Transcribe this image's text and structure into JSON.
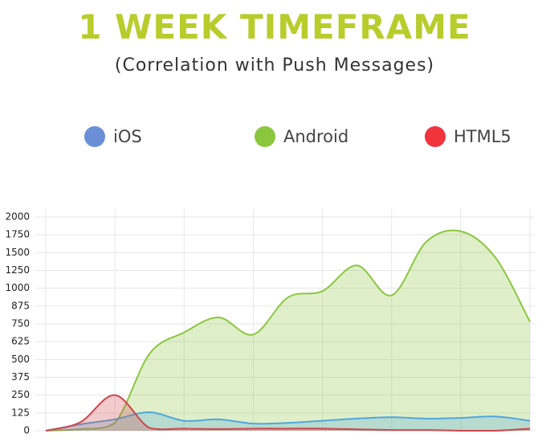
{
  "chart_data": {
    "type": "area",
    "title": "1 WEEK TIMEFRAME",
    "subtitle": "(Correlation with Push Messages)",
    "categories": [
      null,
      null,
      null,
      null,
      null,
      null,
      null,
      null,
      null,
      null,
      null,
      null,
      null,
      null,
      null
    ],
    "series": [
      {
        "name": "Android",
        "color": "#8cc63f",
        "legend_color": "#8cc63f",
        "values": [
          0,
          11,
          56,
          540,
          690,
          795,
          675,
          935,
          980,
          1320,
          950,
          1650,
          1800,
          1430,
          765
        ]
      },
      {
        "name": "iOS",
        "color": "#4fa8dc",
        "legend_color": "#6a8fd6",
        "values": [
          0,
          45,
          80,
          130,
          70,
          80,
          50,
          55,
          70,
          85,
          95,
          85,
          90,
          100,
          70
        ]
      },
      {
        "name": "HTML5",
        "color": "#d0454c",
        "legend_color": "#f0333c",
        "values": [
          0,
          60,
          250,
          20,
          15,
          12,
          15,
          15,
          15,
          10,
          5,
          5,
          0,
          0,
          15
        ]
      }
    ],
    "legend_order": [
      1,
      0,
      2
    ],
    "ylim": [
      0,
      2000
    ],
    "yticks": [
      0,
      125,
      250,
      375,
      500,
      625,
      750,
      875,
      1000,
      1250,
      1500,
      1750,
      2000
    ],
    "grid": true
  }
}
